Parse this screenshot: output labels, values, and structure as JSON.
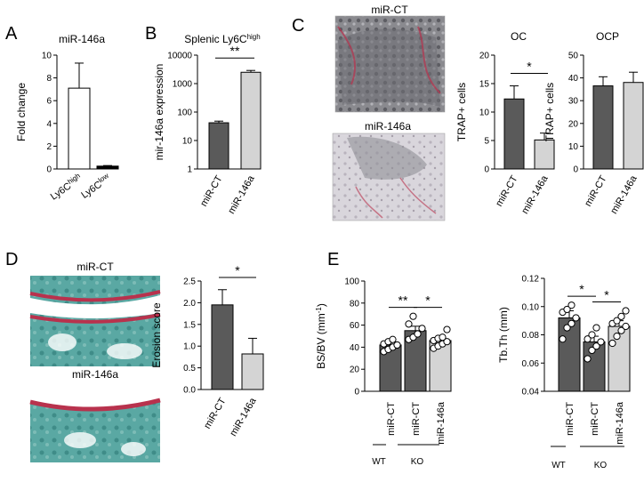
{
  "panels": {
    "A": {
      "letter": "A"
    },
    "B": {
      "letter": "B"
    },
    "C": {
      "letter": "C"
    },
    "D": {
      "letter": "D"
    },
    "E": {
      "letter": "E"
    }
  },
  "image_labels": {
    "c_top": "miR-CT",
    "c_bottom": "miR-146a",
    "d_top": "miR-CT",
    "d_bottom": "miR-146a"
  },
  "group_labels": {
    "e1_wt": "WT",
    "e1_ko": "KO",
    "e2_wt": "WT",
    "e2_ko": "KO"
  },
  "colors": {
    "dark_bar": "#5a5a5a",
    "light_bar": "#d4d4d4",
    "white_bar": "#ffffff",
    "black_bar": "#000000",
    "stain_teal": "#5aa8a3",
    "stain_red": "#b8324d"
  },
  "chart_data": [
    {
      "id": "A",
      "type": "bar",
      "title": "miR-146a",
      "ylabel": "Fold change",
      "ylim": [
        0,
        10
      ],
      "yticks": [
        "0",
        "2",
        "4",
        "6",
        "8",
        "10"
      ],
      "categories": [
        "Ly6Chigh",
        "Ly6Clow"
      ],
      "category_labels": [
        {
          "base": "Ly6C",
          "sup": "high"
        },
        {
          "base": "Ly6C",
          "sup": "low"
        }
      ],
      "values": [
        7.1,
        0.25
      ],
      "errors": [
        2.2,
        0.05
      ],
      "colors": [
        "#ffffff",
        "#000000"
      ]
    },
    {
      "id": "B",
      "type": "bar",
      "title": "Splenic Ly6Chigh",
      "title_parts": {
        "base": "Splenic Ly6C",
        "sup": "high"
      },
      "ylabel": "mir-146a expression",
      "yscale": "log",
      "ylim": [
        1,
        10000
      ],
      "yticks": [
        "1",
        "10",
        "100",
        "1000",
        "10000"
      ],
      "categories": [
        "miR-CT",
        "miR-146a"
      ],
      "values": [
        42,
        2500
      ],
      "errors": [
        6,
        400
      ],
      "colors": [
        "#5a5a5a",
        "#d4d4d4"
      ],
      "significance": "**"
    },
    {
      "id": "C-OC",
      "type": "bar",
      "title": "OC",
      "ylabel": "TRAP+ cells",
      "ylim": [
        0,
        20
      ],
      "yticks": [
        "0",
        "5",
        "10",
        "15",
        "20"
      ],
      "categories": [
        "miR-CT",
        "miR-146a"
      ],
      "values": [
        12.3,
        5.1
      ],
      "errors": [
        2.3,
        1.2
      ],
      "colors": [
        "#5a5a5a",
        "#d4d4d4"
      ],
      "significance": "*"
    },
    {
      "id": "C-OCP",
      "type": "bar",
      "title": "OCP",
      "ylabel": "TRAP+ cells",
      "ylim": [
        0,
        50
      ],
      "yticks": [
        "0",
        "10",
        "20",
        "30",
        "40",
        "50"
      ],
      "categories": [
        "miR-CT",
        "miR-146a"
      ],
      "values": [
        36.5,
        38
      ],
      "errors": [
        4,
        4.5
      ],
      "colors": [
        "#5a5a5a",
        "#d4d4d4"
      ]
    },
    {
      "id": "D",
      "type": "bar",
      "title": "",
      "ylabel": "Erosion score",
      "ylim": [
        0,
        2.5
      ],
      "yticks": [
        "0.0",
        "0.5",
        "1.0",
        "1.5",
        "2.0",
        "2.5"
      ],
      "categories": [
        "miR-CT",
        "miR-146a"
      ],
      "values": [
        1.95,
        0.82
      ],
      "errors": [
        0.35,
        0.36
      ],
      "colors": [
        "#5a5a5a",
        "#d4d4d4"
      ],
      "significance": "*"
    },
    {
      "id": "E-BSBV",
      "type": "bar",
      "title": "",
      "ylabel": "BS/BV (mm-1)",
      "ylabel_parts": {
        "base": "BS/BV (mm",
        "sup": "-1",
        "end": ")"
      },
      "ylim": [
        0,
        100
      ],
      "yticks": [
        "0",
        "20",
        "40",
        "60",
        "80",
        "100"
      ],
      "categories": [
        "miR-CT",
        "miR-CT",
        "miR-146a"
      ],
      "values": [
        42,
        55,
        46
      ],
      "errors": [
        3,
        4,
        3
      ],
      "colors": [
        "#5a5a5a",
        "#5a5a5a",
        "#d4d4d4"
      ],
      "points": [
        [
          36,
          38,
          40,
          42,
          43,
          45,
          47
        ],
        [
          47,
          49,
          52,
          57,
          61,
          68
        ],
        [
          39,
          41,
          43,
          45,
          46,
          48,
          49,
          56
        ]
      ],
      "significance": [
        {
          "from": 0,
          "to": 1,
          "label": "**"
        },
        {
          "from": 1,
          "to": 2,
          "label": "*"
        }
      ]
    },
    {
      "id": "E-TbTh",
      "type": "bar",
      "title": "",
      "ylabel": "Tb.Th (mm)",
      "ylim": [
        0.04,
        0.12
      ],
      "yticks": [
        "0.04",
        "0.06",
        "0.08",
        "0.10",
        "0.12"
      ],
      "categories": [
        "miR-CT",
        "miR-CT",
        "miR-146a"
      ],
      "values": [
        0.092,
        0.075,
        0.086
      ],
      "errors": [
        0.005,
        0.004,
        0.004
      ],
      "colors": [
        "#5a5a5a",
        "#5a5a5a",
        "#d4d4d4"
      ],
      "points": [
        [
          0.077,
          0.085,
          0.088,
          0.092,
          0.096,
          0.098,
          0.101
        ],
        [
          0.063,
          0.069,
          0.072,
          0.075,
          0.077,
          0.08,
          0.085
        ],
        [
          0.074,
          0.079,
          0.083,
          0.086,
          0.088,
          0.09,
          0.093,
          0.097
        ]
      ],
      "significance": [
        {
          "from": 0,
          "to": 1,
          "label": "*"
        },
        {
          "from": 1,
          "to": 2,
          "label": "*"
        }
      ]
    }
  ]
}
